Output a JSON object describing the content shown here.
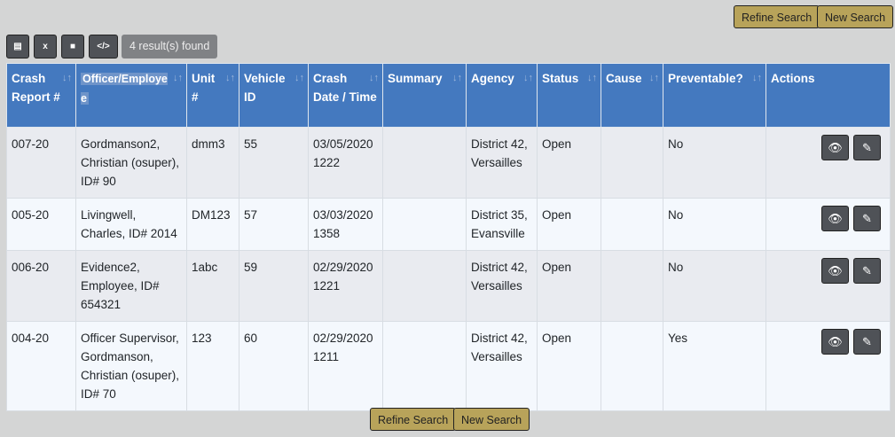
{
  "top_buttons": {
    "refine": "Refine Search",
    "new": "New Search"
  },
  "toolbar": {
    "pdf_icon": "pdf-icon",
    "excel_icon": "excel-icon",
    "file_icon": "file-icon",
    "code_icon": "code-icon",
    "count": "4 result(s) found"
  },
  "columns": [
    "Crash Report #",
    "Officer/Employee",
    "Unit #",
    "Vehicle ID",
    "Crash Date / Time",
    "Summary",
    "Agency",
    "Status",
    "Cause",
    "Preventable?",
    "Actions"
  ],
  "rows": [
    [
      "007-20",
      "Gordmanson2, Christian (osuper), ID# 90",
      "dmm3",
      "55",
      "03/05/2020 1222",
      "",
      "District 42, Versailles",
      "Open",
      "",
      "No"
    ],
    [
      "005-20",
      "Livingwell, Charles, ID# 2014",
      "DM123",
      "57",
      "03/03/2020 1358",
      "",
      "District 35, Evansville",
      "Open",
      "",
      "No"
    ],
    [
      "006-20",
      "Evidence2, Employee, ID# 654321",
      "1abc",
      "59",
      "02/29/2020 1221",
      "",
      "District 42, Versailles",
      "Open",
      "",
      "No"
    ],
    [
      "004-20",
      "Officer Supervisor, Gordmanson, Christian (osuper), ID# 70",
      "123",
      "60",
      "02/29/2020 1211",
      "",
      "District 42, Versailles",
      "Open",
      "",
      "Yes"
    ]
  ],
  "bottom_buttons": {
    "refine": "Refine Search",
    "new": "New Search"
  },
  "colors": {
    "header": "#4479bf",
    "gold": "#b8a35a",
    "dark_button": "#4f5257"
  }
}
